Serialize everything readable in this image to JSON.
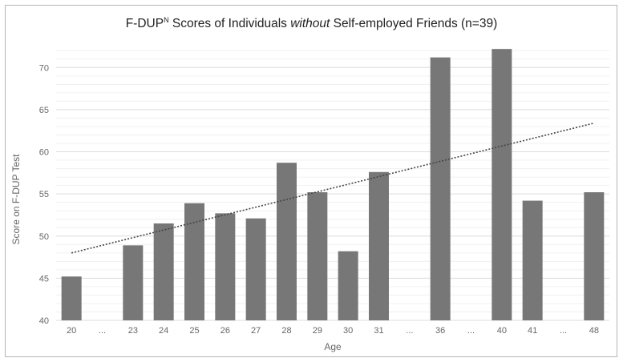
{
  "title": {
    "pre": "F-DUP",
    "sup": "N",
    "mid": " Scores of Individuals ",
    "em": "without",
    "post": " Self-employed Friends (n=39)"
  },
  "chart_data": {
    "type": "bar",
    "categories": [
      "20",
      "...",
      "23",
      "24",
      "25",
      "26",
      "27",
      "28",
      "29",
      "30",
      "31",
      "...",
      "36",
      "...",
      "40",
      "41",
      "...",
      "48"
    ],
    "values": [
      45.2,
      null,
      48.9,
      51.5,
      53.9,
      52.7,
      52.1,
      58.7,
      55.2,
      48.2,
      57.6,
      null,
      71.2,
      null,
      72.2,
      54.2,
      null,
      55.2
    ],
    "xlabel": "Age",
    "ylabel": "Score on F-DUP Test",
    "ylim": [
      40,
      72.5
    ],
    "yticks": [
      40,
      45,
      50,
      55,
      60,
      65,
      70
    ],
    "grid": true,
    "trendline": {
      "style": "dotted",
      "start": 48.0,
      "end": 63.4
    },
    "colors": {
      "bar": "#777777",
      "trend": "#444444",
      "grid": "#e0e0e0"
    }
  }
}
